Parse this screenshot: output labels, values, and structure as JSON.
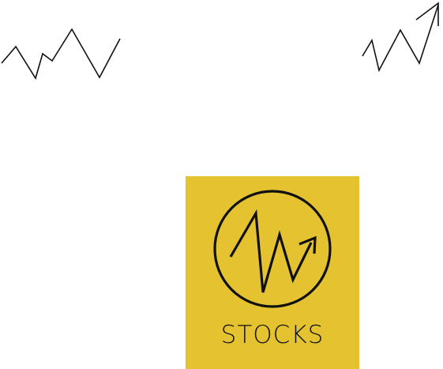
{
  "logo": {
    "word": "STOCKS",
    "icon": "zigzag-up-arrow-in-circle-icon"
  },
  "decorations": {
    "left_icon": "zigzag-line-icon",
    "right_icon": "zigzag-up-arrow-icon"
  },
  "colors": {
    "tile_background": "#e5c330",
    "ink": "#111111",
    "page_background": "#ffffff"
  }
}
